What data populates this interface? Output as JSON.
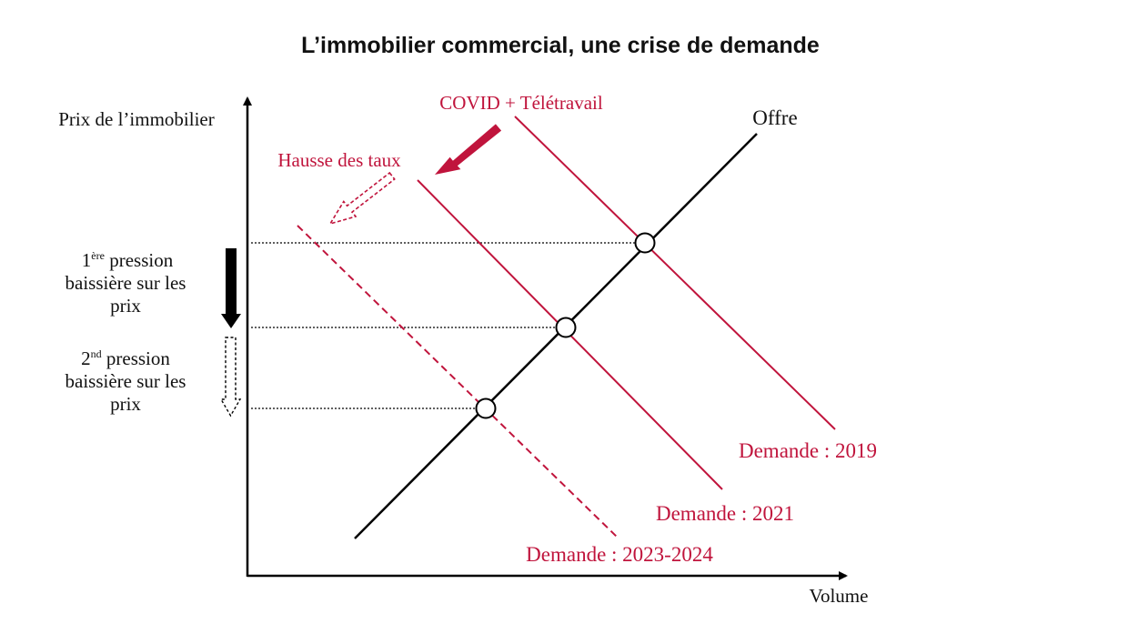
{
  "title": "L’immobilier commercial, une crise de demande",
  "axes": {
    "y_label": "Prix de l’immobilier",
    "x_label": "Volume"
  },
  "supply": {
    "label": "Offre"
  },
  "demand_curves": [
    {
      "label": "Demande : 2019"
    },
    {
      "label": "Demande : 2021"
    },
    {
      "label": "Demande : 2023-2024"
    }
  ],
  "shocks": {
    "covid": "COVID + Télétravail",
    "rates": "Hausse des taux"
  },
  "pressures": [
    {
      "ordinal": "1",
      "sup": "ère",
      "line1": "pression",
      "line2": "baissière sur les",
      "line3": "prix"
    },
    {
      "ordinal": "2",
      "sup": "nd",
      "line1": "pression",
      "line2": "baissière sur les",
      "line3": "prix"
    }
  ],
  "colors": {
    "demand": "#c0143c",
    "supply": "#000000",
    "axes": "#000000"
  }
}
